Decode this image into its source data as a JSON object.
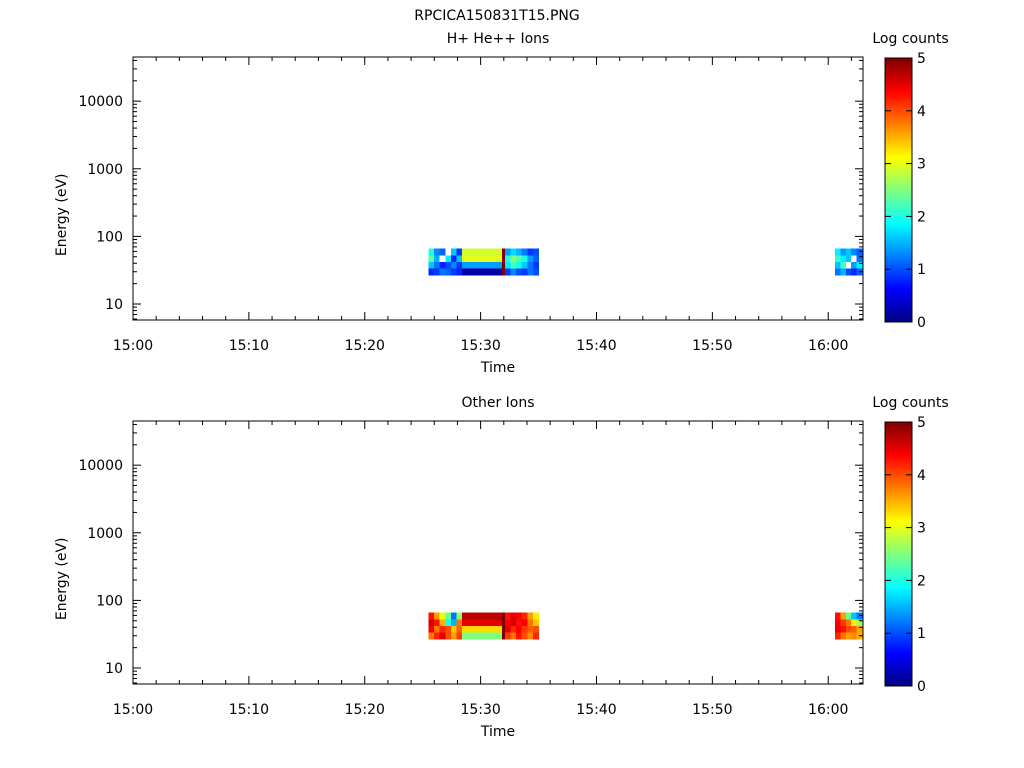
{
  "figure_title": "RPCICA150831T15.PNG",
  "colors": {
    "jet": [
      "#00007f",
      "#0000ff",
      "#007fff",
      "#00ffff",
      "#7fff7f",
      "#ffff00",
      "#ff7f00",
      "#ff0000",
      "#7f0000"
    ],
    "missing": "#ffffff"
  },
  "chart_data": [
    {
      "type": "heatmap",
      "title": "H+ He++ Ions",
      "xlabel": "Time",
      "ylabel": "Energy (eV)",
      "x_ticks": [
        "15:00",
        "15:10",
        "15:20",
        "15:30",
        "15:40",
        "15:50",
        "16:00"
      ],
      "x_range_minutes_after_15": [
        0,
        63
      ],
      "y_scale": "log",
      "y_range": [
        5.8,
        45000
      ],
      "y_ticks": [
        {
          "value": 10,
          "label": "10"
        },
        {
          "value": 100,
          "label": "100"
        },
        {
          "value": 1000,
          "label": "1000"
        },
        {
          "value": 10000,
          "label": "10000"
        }
      ],
      "colorbar": {
        "label": "Log counts",
        "range": [
          0,
          5
        ],
        "ticks": [
          "0",
          "1",
          "2",
          "3",
          "4",
          "5"
        ]
      },
      "energy_bins_eV": [
        30,
        38,
        47,
        59
      ],
      "segments": [
        {
          "start": "15:25:30",
          "end": "15:28:24",
          "cells": [
            [
              0.8,
              0.9,
              1.2,
              1.1,
              0.9,
              0.8
            ],
            [
              1.6,
              1.2,
              0.8,
              1.0,
              1.3,
              0.9
            ],
            [
              2.3,
              1.5,
              null,
              1.8,
              0.8,
              1.6
            ],
            [
              2.0,
              1.3,
              1.1,
              null,
              1.6,
              0.9
            ]
          ]
        },
        {
          "start": "15:28:24",
          "end": "15:31:50",
          "cells": [
            [
              0.2
            ],
            [
              1.4
            ],
            [
              3.0
            ],
            [
              2.9
            ]
          ]
        },
        {
          "start": "15:31:50",
          "end": "15:32:05",
          "cells": [
            [
              5
            ],
            [
              5
            ],
            [
              5
            ],
            [
              5
            ]
          ]
        },
        {
          "start": "15:32:05",
          "end": "15:35:00",
          "cells": [
            [
              0.9,
              1.3,
              1.0,
              0.9,
              1.2,
              1.0
            ],
            [
              1.8,
              2.2,
              2.0,
              1.6,
              1.2,
              0.9
            ],
            [
              2.0,
              2.5,
              2.3,
              2.0,
              1.4,
              1.1
            ],
            [
              1.4,
              1.7,
              1.5,
              1.2,
              0.9,
              1.0
            ]
          ]
        },
        {
          "start": "16:00:35",
          "end": "16:02:55",
          "cells": [
            [
              1.2,
              1.5,
              1.0,
              0.8,
              1.1
            ],
            [
              1.6,
              2.2,
              null,
              1.4,
              1.8
            ],
            [
              2.1,
              1.8,
              1.6,
              null,
              1.2
            ],
            [
              1.8,
              1.4,
              1.6,
              1.3,
              1.1
            ]
          ]
        }
      ]
    },
    {
      "type": "heatmap",
      "title": "Other Ions",
      "xlabel": "Time",
      "ylabel": "Energy (eV)",
      "x_ticks": [
        "15:00",
        "15:10",
        "15:20",
        "15:30",
        "15:40",
        "15:50",
        "16:00"
      ],
      "x_range_minutes_after_15": [
        0,
        63
      ],
      "y_scale": "log",
      "y_range": [
        5.8,
        45000
      ],
      "y_ticks": [
        {
          "value": 10,
          "label": "10"
        },
        {
          "value": 100,
          "label": "100"
        },
        {
          "value": 1000,
          "label": "1000"
        },
        {
          "value": 10000,
          "label": "10000"
        }
      ],
      "colorbar": {
        "label": "Log counts",
        "range": [
          0,
          5
        ],
        "ticks": [
          "0",
          "1",
          "2",
          "3",
          "4",
          "5"
        ]
      },
      "energy_bins_eV": [
        30,
        38,
        47,
        59
      ],
      "segments": [
        {
          "start": "15:25:30",
          "end": "15:28:24",
          "cells": [
            [
              3.8,
              4.2,
              4.5,
              4.0,
              3.6,
              4.1
            ],
            [
              4.4,
              3.8,
              4.2,
              4.0,
              3.4,
              3.9
            ],
            [
              4.6,
              4.3,
              3.5,
              2.0,
              1.5,
              3.8
            ],
            [
              4.3,
              3.6,
              3.0,
              2.4,
              1.2,
              2.6
            ]
          ]
        },
        {
          "start": "15:28:24",
          "end": "15:31:50",
          "cells": [
            [
              2.5
            ],
            [
              3.3
            ],
            [
              4.5
            ],
            [
              4.7
            ]
          ]
        },
        {
          "start": "15:31:50",
          "end": "15:32:05",
          "cells": [
            [
              5
            ],
            [
              5
            ],
            [
              5
            ],
            [
              5
            ]
          ]
        },
        {
          "start": "15:32:05",
          "end": "15:35:00",
          "cells": [
            [
              4.1,
              3.8,
              4.3,
              4.0,
              3.7,
              4.2
            ],
            [
              4.5,
              4.2,
              4.4,
              4.1,
              3.9,
              4.0
            ],
            [
              4.4,
              4.6,
              4.3,
              4.4,
              3.8,
              3.4
            ],
            [
              4.3,
              4.5,
              4.4,
              4.2,
              3.6,
              3.2
            ]
          ]
        },
        {
          "start": "16:00:35",
          "end": "16:02:55",
          "cells": [
            [
              4.2,
              3.8,
              3.6,
              3.7,
              3.5
            ],
            [
              4.5,
              4.3,
              4.0,
              3.9,
              3.6
            ],
            [
              4.4,
              4.1,
              3.8,
              3.2,
              2.6
            ],
            [
              4.3,
              3.6,
              2.4,
              1.6,
              1.2
            ]
          ]
        }
      ]
    }
  ]
}
